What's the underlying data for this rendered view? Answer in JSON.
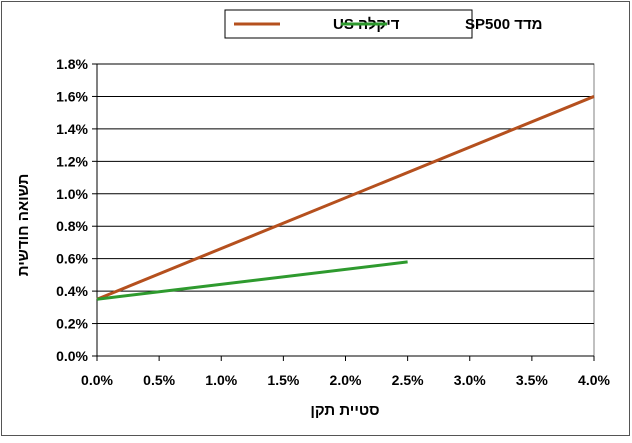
{
  "chart_data": {
    "type": "line",
    "xlabel": "סטיית תקן",
    "ylabel": "תשואה חודשית",
    "xlim": [
      0,
      4.0
    ],
    "ylim": [
      0,
      1.8
    ],
    "x_ticks": [
      "0.0%",
      "0.5%",
      "1.0%",
      "1.5%",
      "2.0%",
      "2.5%",
      "3.0%",
      "3.5%",
      "4.0%"
    ],
    "y_ticks": [
      "0.0%",
      "0.2%",
      "0.4%",
      "0.6%",
      "0.8%",
      "1.0%",
      "1.2%",
      "1.4%",
      "1.6%",
      "1.8%"
    ],
    "grid": "horizontal",
    "legend_position": "top-center",
    "series": [
      {
        "name": "דיקלה US",
        "color": "#b5501e",
        "points": [
          [
            0.0,
            0.35
          ],
          [
            4.0,
            1.6
          ]
        ]
      },
      {
        "name": "מדד SP500",
        "color": "#2e9a2e",
        "points": [
          [
            0.0,
            0.35
          ],
          [
            2.5,
            0.58
          ]
        ]
      }
    ]
  }
}
